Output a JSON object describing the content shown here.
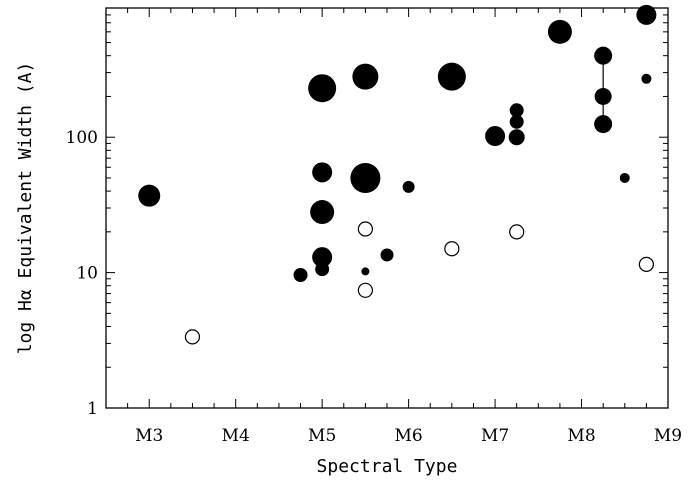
{
  "chart_data": {
    "type": "scatter",
    "xlabel": "Spectral Type",
    "ylabel": "log Hα Equivalent Width (A)",
    "x_tick_labels": [
      "M3",
      "M4",
      "M5",
      "M6",
      "M7",
      "M8",
      "M9"
    ],
    "x_ticks": [
      3,
      4,
      5,
      6,
      7,
      8,
      9
    ],
    "xlim": [
      2.5,
      9.0
    ],
    "y_scale": "log",
    "ylim": [
      1,
      900
    ],
    "y_tick_labels": [
      "1",
      "10",
      "100"
    ],
    "y_ticks": [
      1,
      10,
      100
    ],
    "grid": false,
    "legend": "none",
    "series": [
      {
        "marker": "filled-circle",
        "color": "#000000",
        "points": [
          {
            "x": 3.0,
            "y": 37,
            "size": 11
          },
          {
            "x": 4.75,
            "y": 9.6,
            "size": 7
          },
          {
            "x": 5.0,
            "y": 230,
            "size": 14
          },
          {
            "x": 5.0,
            "y": 55,
            "size": 10
          },
          {
            "x": 5.0,
            "y": 28,
            "size": 12
          },
          {
            "x": 5.0,
            "y": 13,
            "size": 10
          },
          {
            "x": 5.0,
            "y": 10.6,
            "size": 7
          },
          {
            "x": 5.5,
            "y": 280,
            "size": 13
          },
          {
            "x": 5.5,
            "y": 50,
            "size": 15
          },
          {
            "x": 5.5,
            "y": 10.2,
            "size": 4
          },
          {
            "x": 5.75,
            "y": 13.5,
            "size": 6.5
          },
          {
            "x": 6.0,
            "y": 43,
            "size": 6
          },
          {
            "x": 6.5,
            "y": 280,
            "size": 14
          },
          {
            "x": 7.0,
            "y": 102,
            "size": 10
          },
          {
            "x": 7.25,
            "y": 158,
            "size": 7
          },
          {
            "x": 7.25,
            "y": 130,
            "size": 7
          },
          {
            "x": 7.25,
            "y": 100,
            "size": 8
          },
          {
            "x": 7.75,
            "y": 600,
            "size": 12
          },
          {
            "x": 8.25,
            "y": 400,
            "size": 9
          },
          {
            "x": 8.25,
            "y": 200,
            "size": 8.5
          },
          {
            "x": 8.25,
            "y": 125,
            "size": 9
          },
          {
            "x": 8.5,
            "y": 50,
            "size": 5
          },
          {
            "x": 8.75,
            "y": 800,
            "size": 10
          },
          {
            "x": 8.75,
            "y": 270,
            "size": 5
          }
        ]
      },
      {
        "marker": "open-circle",
        "color": "#000000",
        "points": [
          {
            "x": 3.5,
            "y": 3.35,
            "size": 7
          },
          {
            "x": 5.5,
            "y": 21,
            "size": 7
          },
          {
            "x": 5.5,
            "y": 7.4,
            "size": 7
          },
          {
            "x": 6.5,
            "y": 15,
            "size": 7
          },
          {
            "x": 7.25,
            "y": 20,
            "size": 7
          },
          {
            "x": 8.75,
            "y": 11.5,
            "size": 7
          }
        ]
      }
    ],
    "connector_lines": [
      {
        "x": 8.25,
        "y_from": 125,
        "y_to": 400
      }
    ]
  }
}
